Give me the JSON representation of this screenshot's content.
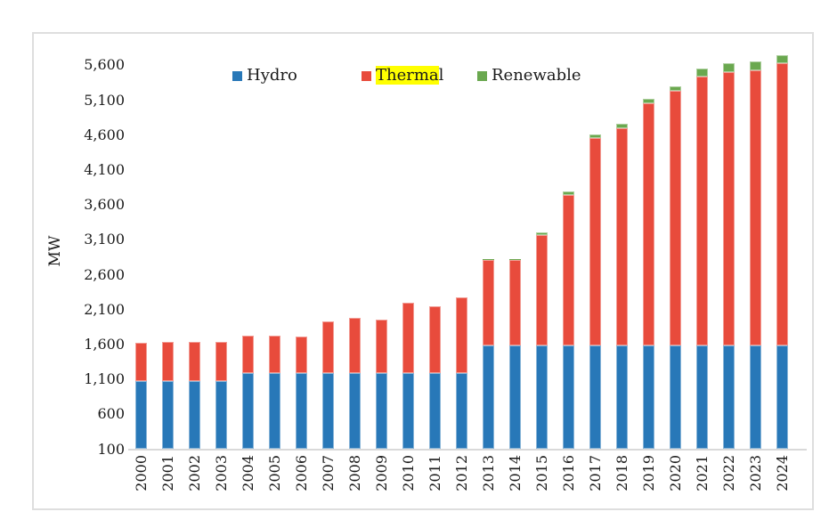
{
  "chart_data": {
    "type": "bar",
    "stacked": true,
    "title": "",
    "xlabel": "",
    "ylabel": "MW",
    "legend_position": "top",
    "gridlines": false,
    "categories": [
      "2000",
      "2001",
      "2002",
      "2003",
      "2004",
      "2005",
      "2006",
      "2007",
      "2008",
      "2009",
      "2010",
      "2011",
      "2012",
      "2013",
      "2014",
      "2015",
      "2016",
      "2017",
      "2018",
      "2019",
      "2020",
      "2021",
      "2022",
      "2023",
      "2024"
    ],
    "series": [
      {
        "name": "Hydro",
        "color": "#2878b8",
        "values": [
          1072,
          1072,
          1072,
          1072,
          1180,
          1180,
          1180,
          1180,
          1180,
          1180,
          1180,
          1180,
          1180,
          1580,
          1580,
          1580,
          1580,
          1580,
          1580,
          1580,
          1580,
          1580,
          1580,
          1580,
          1580
        ]
      },
      {
        "name": "Thermal",
        "color": "#e84b3c",
        "label_highlight": {
          "text": "Therma",
          "color": "#ffff00"
        },
        "values": [
          550,
          555,
          560,
          555,
          540,
          535,
          525,
          740,
          795,
          765,
          1010,
          965,
          1085,
          1225,
          1225,
          1580,
          2155,
          2970,
          3110,
          3470,
          3645,
          3850,
          3915,
          3940,
          4040
        ]
      },
      {
        "name": "Renewable",
        "color": "#6aa84f",
        "values": [
          0,
          0,
          0,
          0,
          0,
          0,
          0,
          0,
          0,
          0,
          0,
          0,
          0,
          10,
          10,
          40,
          50,
          50,
          65,
          65,
          65,
          115,
          130,
          130,
          120
        ]
      }
    ],
    "totals": [
      1622,
      1627,
      1632,
      1627,
      1720,
      1715,
      1705,
      1920,
      1975,
      1945,
      2190,
      2145,
      2265,
      2815,
      2815,
      3200,
      3785,
      4600,
      4755,
      5115,
      5290,
      5545,
      5625,
      5650,
      5740
    ],
    "y_axis": {
      "min": 100,
      "max": 5800,
      "tick_step": 500,
      "tick_values": [
        100,
        600,
        1100,
        1600,
        2100,
        2600,
        3100,
        3600,
        4100,
        4600,
        5100,
        5600
      ],
      "tick_labels": [
        "100",
        "600",
        "1,100",
        "1,600",
        "2,100",
        "2,600",
        "3,100",
        "3,600",
        "4,100",
        "4,600",
        "5,100",
        "5,600"
      ]
    },
    "frame_border_color": "#dedede",
    "axis_line_color": "#d9d9d9"
  }
}
